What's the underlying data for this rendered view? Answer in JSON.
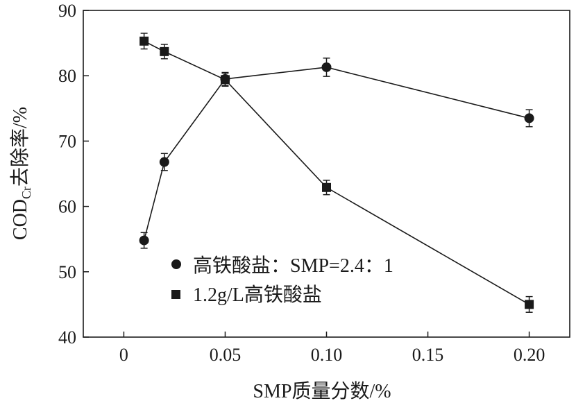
{
  "chart_data": {
    "type": "line",
    "xlabel": "SMP质量分数/%",
    "ylabel_main": "COD",
    "ylabel_sub": "Cr",
    "ylabel_rest": "去除率/%",
    "xlim": [
      -0.02,
      0.22
    ],
    "ylim": [
      40,
      90
    ],
    "xticks": [
      0,
      0.05,
      0.1,
      0.15,
      0.2
    ],
    "xtick_labels": [
      "0",
      "0.05",
      "0.10",
      "0.15",
      "0.20"
    ],
    "yticks": [
      40,
      50,
      60,
      70,
      80,
      90
    ],
    "ytick_labels": [
      "40",
      "50",
      "60",
      "70",
      "80",
      "90"
    ],
    "grid": false,
    "legend_position": "lower-left",
    "series": [
      {
        "name": "高铁酸盐：SMP=2.4：1",
        "marker": "circle",
        "x": [
          0.01,
          0.02,
          0.05,
          0.1,
          0.2
        ],
        "y": [
          54.8,
          66.8,
          79.5,
          81.3,
          73.5
        ],
        "err": [
          1.2,
          1.3,
          1.0,
          1.4,
          1.3
        ]
      },
      {
        "name": "1.2g/L高铁酸盐",
        "marker": "square",
        "x": [
          0.01,
          0.02,
          0.05,
          0.1,
          0.2
        ],
        "y": [
          85.3,
          83.7,
          79.4,
          62.9,
          45.0
        ],
        "err": [
          1.2,
          1.1,
          1.0,
          1.1,
          1.2
        ]
      }
    ],
    "colors": {
      "line": "#1a1a1a",
      "marker": "#1a1a1a",
      "axis": "#1a1a1a"
    }
  }
}
